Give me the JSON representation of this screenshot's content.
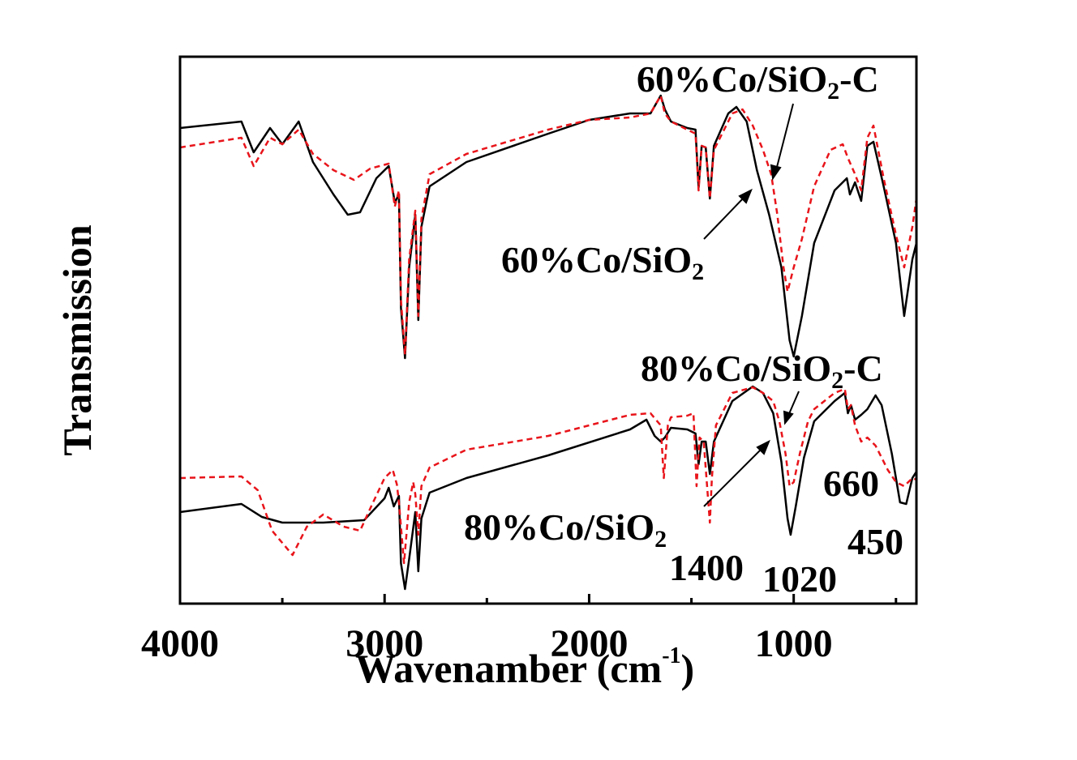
{
  "chart_data": {
    "type": "line",
    "title": "",
    "xlabel": "Wavenamber (cm",
    "xlabel_sup": "-1",
    "xlabel_close": ")",
    "ylabel": "Transmission",
    "xlim": [
      4000,
      400
    ],
    "x_reversed": true,
    "xticks": [
      4000,
      3000,
      2000,
      1000
    ],
    "xtick_labels": [
      "4000",
      "3000",
      "2000",
      "1000"
    ],
    "y_axis_ticks": false,
    "grid": false,
    "colors": {
      "black": "#000000",
      "red": "#e8141a"
    },
    "annotations": {
      "top_c": {
        "text": "60%Co/SiO",
        "sub": "2",
        "suffix": "-C"
      },
      "top_plain": {
        "text": "60%Co/SiO",
        "sub": "2",
        "suffix": ""
      },
      "bottom_c": {
        "text": "80%Co/SiO",
        "sub": "2",
        "suffix": "-C"
      },
      "bottom_plain": {
        "text": "80%Co/SiO",
        "sub": "2",
        "suffix": ""
      },
      "peaks": [
        "1400",
        "1020",
        "660",
        "450"
      ]
    },
    "series": [
      {
        "name": "60%Co/SiO2",
        "color": "#000000",
        "dash": "solid",
        "points": [
          [
            4000,
            158
          ],
          [
            3700,
            150
          ],
          [
            3640,
            188
          ],
          [
            3560,
            158
          ],
          [
            3500,
            178
          ],
          [
            3420,
            150
          ],
          [
            3350,
            200
          ],
          [
            3250,
            240
          ],
          [
            3180,
            265
          ],
          [
            3120,
            262
          ],
          [
            3040,
            220
          ],
          [
            2980,
            205
          ],
          [
            2950,
            250
          ],
          [
            2930,
            240
          ],
          [
            2920,
            380
          ],
          [
            2900,
            442
          ],
          [
            2880,
            330
          ],
          [
            2850,
            265
          ],
          [
            2835,
            395
          ],
          [
            2820,
            280
          ],
          [
            2780,
            230
          ],
          [
            2600,
            200
          ],
          [
            2200,
            165
          ],
          [
            2000,
            148
          ],
          [
            1800,
            140
          ],
          [
            1700,
            140
          ],
          [
            1650,
            118
          ],
          [
            1630,
            135
          ],
          [
            1600,
            150
          ],
          [
            1520,
            158
          ],
          [
            1480,
            160
          ],
          [
            1465,
            232
          ],
          [
            1450,
            180
          ],
          [
            1430,
            182
          ],
          [
            1410,
            245
          ],
          [
            1390,
            180
          ],
          [
            1320,
            140
          ],
          [
            1280,
            132
          ],
          [
            1230,
            150
          ],
          [
            1180,
            210
          ],
          [
            1120,
            265
          ],
          [
            1060,
            330
          ],
          [
            1020,
            420
          ],
          [
            1000,
            440
          ],
          [
            960,
            390
          ],
          [
            900,
            300
          ],
          [
            800,
            235
          ],
          [
            740,
            220
          ],
          [
            725,
            240
          ],
          [
            700,
            225
          ],
          [
            670,
            248
          ],
          [
            640,
            180
          ],
          [
            610,
            175
          ],
          [
            560,
            230
          ],
          [
            500,
            300
          ],
          [
            460,
            390
          ],
          [
            420,
            320
          ],
          [
            400,
            300
          ]
        ]
      },
      {
        "name": "60%Co/SiO2-C",
        "color": "#e8141a",
        "dash": "dashed",
        "points": [
          [
            4000,
            182
          ],
          [
            3700,
            170
          ],
          [
            3640,
            205
          ],
          [
            3560,
            170
          ],
          [
            3500,
            178
          ],
          [
            3420,
            160
          ],
          [
            3350,
            190
          ],
          [
            3250,
            210
          ],
          [
            3150,
            222
          ],
          [
            3070,
            208
          ],
          [
            2980,
            202
          ],
          [
            2950,
            255
          ],
          [
            2930,
            235
          ],
          [
            2920,
            370
          ],
          [
            2900,
            438
          ],
          [
            2880,
            320
          ],
          [
            2850,
            260
          ],
          [
            2835,
            390
          ],
          [
            2820,
            270
          ],
          [
            2780,
            215
          ],
          [
            2600,
            190
          ],
          [
            2200,
            160
          ],
          [
            2000,
            148
          ],
          [
            1800,
            145
          ],
          [
            1700,
            140
          ],
          [
            1650,
            118
          ],
          [
            1630,
            140
          ],
          [
            1600,
            150
          ],
          [
            1520,
            160
          ],
          [
            1480,
            165
          ],
          [
            1465,
            235
          ],
          [
            1450,
            180
          ],
          [
            1430,
            182
          ],
          [
            1410,
            245
          ],
          [
            1390,
            185
          ],
          [
            1300,
            140
          ],
          [
            1250,
            135
          ],
          [
            1200,
            155
          ],
          [
            1150,
            185
          ],
          [
            1110,
            215
          ],
          [
            1080,
            265
          ],
          [
            1050,
            330
          ],
          [
            1030,
            360
          ],
          [
            1000,
            330
          ],
          [
            960,
            295
          ],
          [
            900,
            230
          ],
          [
            820,
            185
          ],
          [
            760,
            178
          ],
          [
            735,
            195
          ],
          [
            700,
            215
          ],
          [
            670,
            235
          ],
          [
            640,
            170
          ],
          [
            610,
            155
          ],
          [
            560,
            220
          ],
          [
            500,
            290
          ],
          [
            460,
            330
          ],
          [
            420,
            280
          ],
          [
            400,
            245
          ]
        ]
      },
      {
        "name": "80%Co/SiO2",
        "color": "#000000",
        "dash": "solid",
        "points": [
          [
            4000,
            632
          ],
          [
            3700,
            622
          ],
          [
            3600,
            638
          ],
          [
            3500,
            645
          ],
          [
            3300,
            645
          ],
          [
            3100,
            642
          ],
          [
            3000,
            615
          ],
          [
            2980,
            602
          ],
          [
            2955,
            625
          ],
          [
            2930,
            612
          ],
          [
            2920,
            695
          ],
          [
            2900,
            727
          ],
          [
            2880,
            690
          ],
          [
            2850,
            632
          ],
          [
            2835,
            705
          ],
          [
            2820,
            640
          ],
          [
            2780,
            608
          ],
          [
            2600,
            590
          ],
          [
            2200,
            562
          ],
          [
            1800,
            530
          ],
          [
            1720,
            518
          ],
          [
            1680,
            538
          ],
          [
            1650,
            545
          ],
          [
            1630,
            540
          ],
          [
            1600,
            528
          ],
          [
            1520,
            530
          ],
          [
            1480,
            535
          ],
          [
            1465,
            573
          ],
          [
            1450,
            545
          ],
          [
            1430,
            545
          ],
          [
            1410,
            585
          ],
          [
            1390,
            545
          ],
          [
            1300,
            495
          ],
          [
            1200,
            477
          ],
          [
            1150,
            485
          ],
          [
            1100,
            510
          ],
          [
            1060,
            570
          ],
          [
            1030,
            640
          ],
          [
            1015,
            660
          ],
          [
            990,
            625
          ],
          [
            950,
            565
          ],
          [
            900,
            520
          ],
          [
            800,
            495
          ],
          [
            750,
            485
          ],
          [
            735,
            510
          ],
          [
            720,
            500
          ],
          [
            700,
            518
          ],
          [
            670,
            512
          ],
          [
            640,
            505
          ],
          [
            600,
            488
          ],
          [
            570,
            500
          ],
          [
            520,
            560
          ],
          [
            480,
            620
          ],
          [
            450,
            622
          ],
          [
            420,
            590
          ],
          [
            400,
            582
          ]
        ]
      },
      {
        "name": "80%Co/SiO2-C",
        "color": "#e8141a",
        "dash": "dashed",
        "points": [
          [
            4000,
            590
          ],
          [
            3700,
            588
          ],
          [
            3620,
            605
          ],
          [
            3550,
            655
          ],
          [
            3450,
            685
          ],
          [
            3380,
            650
          ],
          [
            3300,
            635
          ],
          [
            3200,
            650
          ],
          [
            3120,
            655
          ],
          [
            3060,
            622
          ],
          [
            3000,
            590
          ],
          [
            2960,
            580
          ],
          [
            2940,
            598
          ],
          [
            2930,
            620
          ],
          [
            2920,
            650
          ],
          [
            2905,
            695
          ],
          [
            2880,
            620
          ],
          [
            2860,
            595
          ],
          [
            2850,
            610
          ],
          [
            2835,
            660
          ],
          [
            2820,
            600
          ],
          [
            2780,
            577
          ],
          [
            2600,
            555
          ],
          [
            2200,
            538
          ],
          [
            2000,
            525
          ],
          [
            1800,
            512
          ],
          [
            1700,
            510
          ],
          [
            1650,
            525
          ],
          [
            1635,
            590
          ],
          [
            1615,
            525
          ],
          [
            1600,
            515
          ],
          [
            1520,
            513
          ],
          [
            1490,
            510
          ],
          [
            1475,
            600
          ],
          [
            1460,
            540
          ],
          [
            1440,
            545
          ],
          [
            1410,
            645
          ],
          [
            1400,
            590
          ],
          [
            1380,
            525
          ],
          [
            1300,
            485
          ],
          [
            1200,
            478
          ],
          [
            1150,
            485
          ],
          [
            1100,
            495
          ],
          [
            1070,
            520
          ],
          [
            1040,
            560
          ],
          [
            1020,
            600
          ],
          [
            1000,
            595
          ],
          [
            970,
            560
          ],
          [
            930,
            520
          ],
          [
            900,
            505
          ],
          [
            800,
            485
          ],
          [
            750,
            480
          ],
          [
            735,
            505
          ],
          [
            720,
            500
          ],
          [
            700,
            525
          ],
          [
            670,
            545
          ],
          [
            640,
            540
          ],
          [
            600,
            550
          ],
          [
            540,
            580
          ],
          [
            500,
            595
          ],
          [
            460,
            600
          ],
          [
            420,
            590
          ],
          [
            400,
            592
          ]
        ]
      }
    ]
  }
}
